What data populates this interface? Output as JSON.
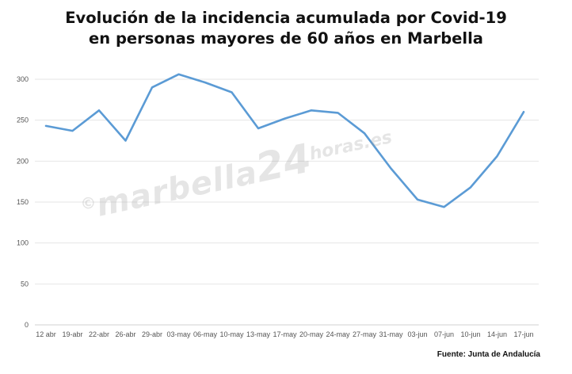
{
  "chart_data": {
    "type": "line",
    "title_lines": [
      "Evolución de la incidencia acumulada por Covid-19",
      "en personas mayores de 60 años en Marbella"
    ],
    "categories": [
      "12 abr",
      "19-abr",
      "22-abr",
      "26-abr",
      "29-abr",
      "03-may",
      "06-may",
      "10-may",
      "13-may",
      "17-may",
      "20-may",
      "24-may",
      "27-may",
      "31-may",
      "03-jun",
      "07-jun",
      "10-jun",
      "14-jun",
      "17-jun"
    ],
    "values": [
      243,
      237,
      262,
      225,
      290,
      306,
      296,
      284,
      240,
      252,
      262,
      259,
      234,
      191,
      153,
      144,
      168,
      206,
      260
    ],
    "ylim": [
      0,
      300
    ],
    "yticks": [
      0,
      50,
      100,
      150,
      200,
      250,
      300
    ],
    "grid": true,
    "line_color": "#5b9bd5",
    "source": "Fuente: Junta de Andalucía"
  },
  "watermark": {
    "copyright": "©",
    "main": "marbella",
    "number": "24",
    "suffix": "horas.es"
  }
}
